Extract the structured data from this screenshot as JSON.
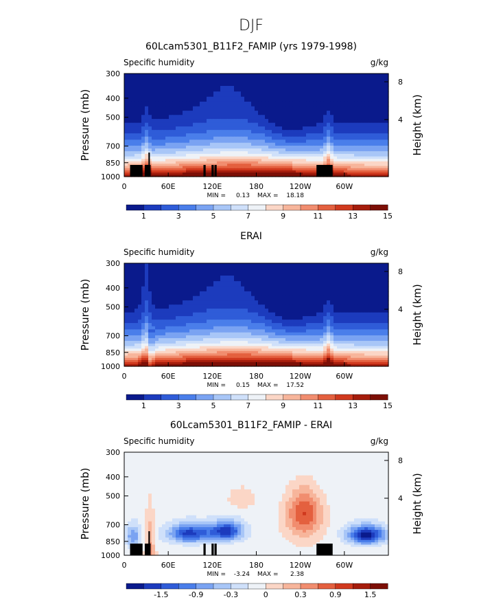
{
  "page_title": "DJF",
  "chart_data": [
    {
      "type": "heatmap",
      "title": "60Lcam5301_B11F2_FAMIP (yrs 1979-1998)",
      "subtitle_left": "Specific humidity",
      "units": "g/kg",
      "ylabel": "Pressure (mb)",
      "ylabel_right": "Height (km)",
      "x_ticks": [
        "0",
        "60E",
        "120E",
        "180",
        "120W",
        "60W"
      ],
      "x_tick_values": [
        0,
        60,
        120,
        180,
        240,
        300
      ],
      "xlim": [
        0,
        360
      ],
      "y_ticks": [
        "300",
        "400",
        "500",
        "700",
        "850",
        "1000"
      ],
      "y_tick_values": [
        300,
        400,
        500,
        700,
        850,
        1000
      ],
      "ylim": [
        1000,
        300
      ],
      "y_scale": "log",
      "right_ticks": [
        "8",
        "4"
      ],
      "right_tick_values": [
        8,
        4
      ],
      "min_label": "MIN =",
      "min_value": "0.13",
      "max_label": "MAX =",
      "max_value": "18.18",
      "colorbar_colors": [
        "#0a1a8c",
        "#1c3bbd",
        "#2f5cd8",
        "#4a7eea",
        "#7aa3f2",
        "#a8c6f7",
        "#cfe0fa",
        "#eef2f7",
        "#fbd6c6",
        "#f7b59b",
        "#f18d6f",
        "#e4603f",
        "#d0391e",
        "#a51d0c",
        "#7c0f06"
      ],
      "colorbar_labels": [
        "1",
        "3",
        "5",
        "7",
        "9",
        "11",
        "13",
        "15"
      ],
      "colorbar_label_slots": [
        1,
        3,
        5,
        7,
        9,
        11,
        13,
        15
      ],
      "land": [
        [
          8,
          25
        ],
        [
          33,
          35
        ],
        [
          28,
          36
        ],
        [
          108,
          111
        ],
        [
          119,
          122
        ],
        [
          123,
          126
        ],
        [
          262,
          284
        ]
      ],
      "field_type": "model"
    },
    {
      "type": "heatmap",
      "title": "ERAI",
      "subtitle_left": "Specific humidity",
      "units": "g/kg",
      "ylabel": "Pressure (mb)",
      "ylabel_right": "Height (km)",
      "x_ticks": [
        "0",
        "60E",
        "120E",
        "180",
        "120W",
        "60W"
      ],
      "x_tick_values": [
        0,
        60,
        120,
        180,
        240,
        300
      ],
      "xlim": [
        0,
        360
      ],
      "y_ticks": [
        "300",
        "400",
        "500",
        "700",
        "850",
        "1000"
      ],
      "y_tick_values": [
        300,
        400,
        500,
        700,
        850,
        1000
      ],
      "ylim": [
        1000,
        300
      ],
      "y_scale": "log",
      "right_ticks": [
        "8",
        "4"
      ],
      "right_tick_values": [
        8,
        4
      ],
      "min_label": "MIN =",
      "min_value": "0.15",
      "max_label": "MAX =",
      "max_value": "17.52",
      "colorbar_colors": [
        "#0a1a8c",
        "#1c3bbd",
        "#2f5cd8",
        "#4a7eea",
        "#7aa3f2",
        "#a8c6f7",
        "#cfe0fa",
        "#eef2f7",
        "#fbd6c6",
        "#f7b59b",
        "#f18d6f",
        "#e4603f",
        "#d0391e",
        "#a51d0c",
        "#7c0f06"
      ],
      "colorbar_labels": [
        "1",
        "3",
        "5",
        "7",
        "9",
        "11",
        "13",
        "15"
      ],
      "colorbar_label_slots": [
        1,
        3,
        5,
        7,
        9,
        11,
        13,
        15
      ],
      "land": [],
      "field_type": "obs"
    },
    {
      "type": "heatmap",
      "title": "60Lcam5301_B11F2_FAMIP - ERAI",
      "subtitle_left": "Specific humidity",
      "units": "g/kg",
      "ylabel": "Pressure (mb)",
      "ylabel_right": "Height (km)",
      "x_ticks": [
        "0",
        "60E",
        "120E",
        "180",
        "120W",
        "60W"
      ],
      "x_tick_values": [
        0,
        60,
        120,
        180,
        240,
        300
      ],
      "xlim": [
        0,
        360
      ],
      "y_ticks": [
        "300",
        "400",
        "500",
        "700",
        "850",
        "1000"
      ],
      "y_tick_values": [
        300,
        400,
        500,
        700,
        850,
        1000
      ],
      "ylim": [
        1000,
        300
      ],
      "y_scale": "log",
      "right_ticks": [
        "8",
        "4"
      ],
      "right_tick_values": [
        8,
        4
      ],
      "min_label": "MIN =",
      "min_value": "-3.24",
      "max_label": "MAX =",
      "max_value": "2.38",
      "colorbar_colors": [
        "#0a1a8c",
        "#1c3bbd",
        "#2f5cd8",
        "#4a7eea",
        "#7aa3f2",
        "#a8c6f7",
        "#cfe0fa",
        "#eef2f7",
        "#fbd6c6",
        "#f7b59b",
        "#f18d6f",
        "#e4603f",
        "#d0391e",
        "#a51d0c",
        "#7c0f06"
      ],
      "colorbar_labels": [
        "-1.5",
        "-0.9",
        "-0.3",
        "0",
        "0.3",
        "0.9",
        "1.5"
      ],
      "colorbar_label_slots": [
        2,
        4,
        6,
        8,
        10,
        12,
        14
      ],
      "land": [
        [
          8,
          25
        ],
        [
          28,
          36
        ],
        [
          33,
          35
        ],
        [
          108,
          111
        ],
        [
          119,
          122
        ],
        [
          123,
          126
        ],
        [
          262,
          284
        ]
      ],
      "field_type": "diff"
    }
  ]
}
